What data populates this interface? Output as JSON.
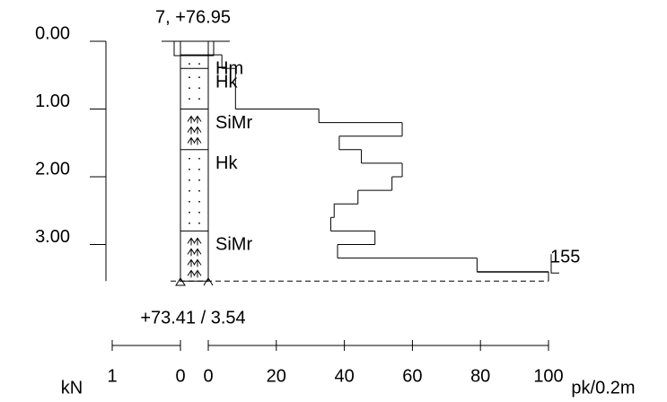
{
  "header": {
    "label": "7, +76.95"
  },
  "footer": {
    "label": "+73.41 / 3.54"
  },
  "depth_axis": {
    "ticks": [
      {
        "value": 0,
        "label": "0.00"
      },
      {
        "value": 1,
        "label": "1.00"
      },
      {
        "value": 2,
        "label": "2.00"
      },
      {
        "value": 3,
        "label": "3.00"
      }
    ],
    "bottom": 3.54
  },
  "layers": [
    {
      "top": 0.2,
      "bottom": 0.4,
      "label": "Hm"
    },
    {
      "top": 0.4,
      "bottom": 1.0,
      "label": "Hk"
    },
    {
      "top": 1.0,
      "bottom": 1.6,
      "label": "SiMr"
    },
    {
      "top": 1.6,
      "bottom": 2.8,
      "label": "Hk"
    },
    {
      "top": 2.8,
      "bottom": 3.54,
      "label": "SiMr"
    }
  ],
  "profile": {
    "depths": [
      0.2,
      0.4,
      1.0,
      1.2,
      1.4,
      1.6,
      1.8,
      2.0,
      2.2,
      2.4,
      2.6,
      2.8,
      3.0,
      3.2,
      3.4,
      3.54
    ],
    "values": [
      4,
      8,
      32.5,
      57,
      38.5,
      45,
      57,
      54,
      44,
      37,
      36,
      49,
      38,
      79,
      100
    ],
    "end_label": "155"
  },
  "load_scale": {
    "unit": "kN",
    "ticks": [
      1,
      0
    ]
  },
  "count_scale": {
    "unit": "pk/0.2m",
    "ticks": [
      0,
      20,
      40,
      60,
      80,
      100
    ]
  }
}
